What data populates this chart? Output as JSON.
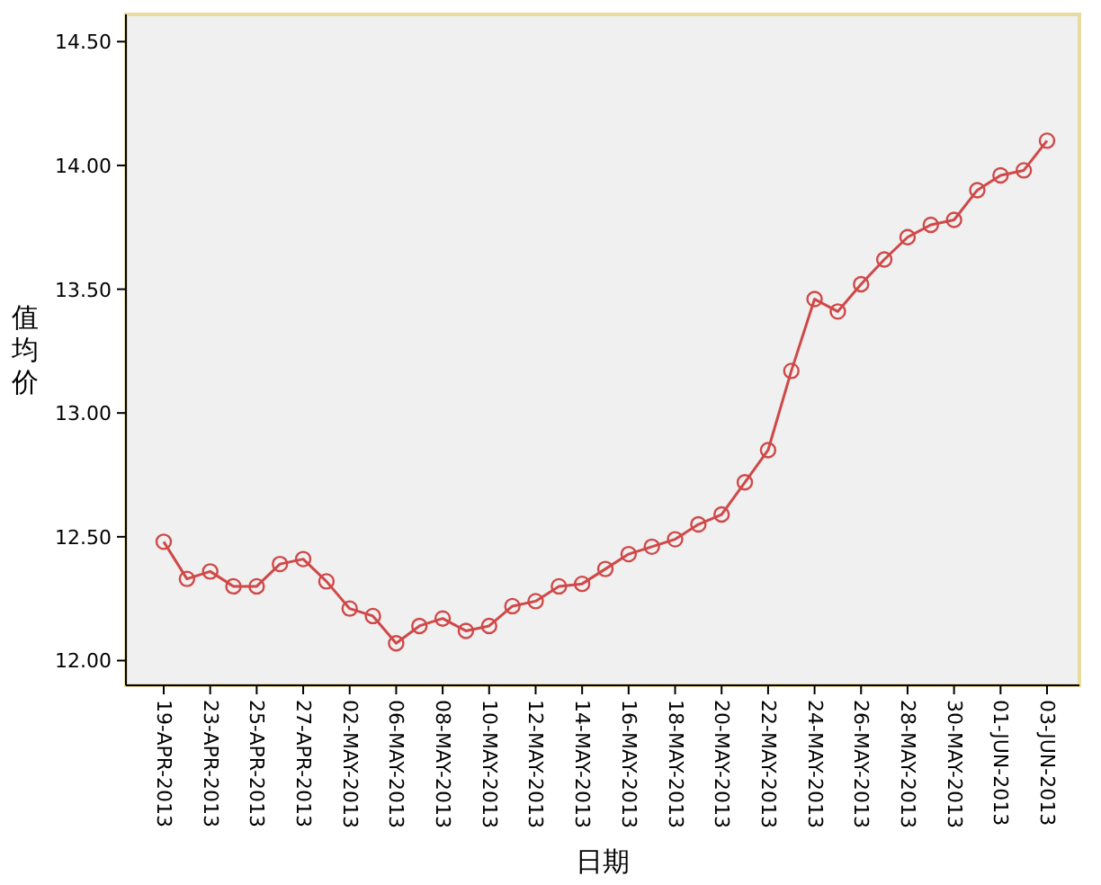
{
  "chart_data": {
    "type": "line",
    "xlabel": "日期",
    "ylabel": "值均价",
    "categories": [
      "19-APR-2013",
      null,
      "23-APR-2013",
      null,
      "25-APR-2013",
      null,
      "27-APR-2013",
      null,
      "02-MAY-2013",
      null,
      "06-MAY-2013",
      null,
      "08-MAY-2013",
      null,
      "10-MAY-2013",
      null,
      "12-MAY-2013",
      null,
      "14-MAY-2013",
      null,
      "16-MAY-2013",
      null,
      "18-MAY-2013",
      null,
      "20-MAY-2013",
      null,
      "22-MAY-2013",
      null,
      "24-MAY-2013",
      null,
      "26-MAY-2013",
      null,
      "28-MAY-2013",
      null,
      "30-MAY-2013",
      null,
      "01-JUN-2013",
      null,
      "03-JUN-2013"
    ],
    "series": [
      {
        "color": "#d04848",
        "values": [
          12.48,
          12.33,
          12.36,
          12.3,
          12.3,
          12.39,
          12.41,
          12.32,
          12.21,
          12.18,
          12.07,
          12.14,
          12.17,
          12.12,
          12.14,
          12.22,
          12.24,
          12.3,
          12.31,
          12.37,
          12.43,
          12.46,
          12.49,
          12.55,
          12.59,
          12.72,
          12.85,
          13.17,
          13.46,
          13.41,
          13.52,
          13.62,
          13.71,
          13.76,
          13.78,
          13.9,
          13.96,
          13.98,
          14.1
        ]
      }
    ],
    "ylim": [
      11.9,
      14.61
    ],
    "yticks": [
      {
        "value": 12,
        "label": "12.00"
      },
      {
        "value": 12.5,
        "label": "12.50"
      },
      {
        "value": 13,
        "label": "13.00"
      },
      {
        "value": 13.5,
        "label": "13.50"
      },
      {
        "value": 14,
        "label": "14.00"
      },
      {
        "value": 14.5,
        "label": "14.50"
      }
    ],
    "marker": "circle",
    "line_style": "solid",
    "grid": false
  }
}
